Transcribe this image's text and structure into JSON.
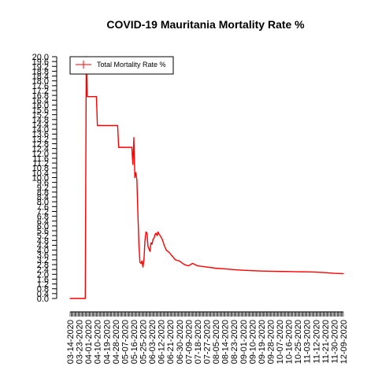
{
  "chart_data": {
    "type": "line",
    "title": "COVID-19 Mauritania Mortality Rate %",
    "xlabel": "",
    "ylabel": "",
    "ylim": [
      0,
      20
    ],
    "y_ticks": [
      "0.0",
      "0.4",
      "0.8",
      "1.2",
      "1.6",
      "2.0",
      "2.4",
      "2.8",
      "3.2",
      "3.6",
      "4.0",
      "4.4",
      "4.8",
      "5.2",
      "5.6",
      "6.0",
      "6.4",
      "6.8",
      "7.2",
      "7.6",
      "8.0",
      "8.4",
      "8.8",
      "9.2",
      "9.6",
      "10.0",
      "10.4",
      "10.8",
      "11.2",
      "11.6",
      "12.0",
      "12.4",
      "12.8",
      "13.2",
      "13.6",
      "14.0",
      "14.4",
      "14.8",
      "15.2",
      "15.6",
      "16.0",
      "16.4",
      "16.8",
      "17.2",
      "17.6",
      "18.0",
      "18.4",
      "18.8",
      "19.2",
      "19.6",
      "20.0"
    ],
    "x_ticks": [
      "03-14-2020",
      "03-23-2020",
      "04-01-2020",
      "04-10-2020",
      "04-19-2020",
      "04-28-2020",
      "05-07-2020",
      "05-16-2020",
      "05-25-2020",
      "06-03-2020",
      "06-12-2020",
      "06-21-2020",
      "06-30-2020",
      "07-09-2020",
      "07-18-2020",
      "07-27-2020",
      "08-05-2020",
      "08-14-2020",
      "08-23-2020",
      "09-01-2020",
      "09-10-2020",
      "09-19-2020",
      "09-28-2020",
      "10-07-2020",
      "10-16-2020",
      "10-25-2020",
      "11-03-2020",
      "11-12-2020",
      "11-21-2020",
      "11-30-2020",
      "12-09-2020"
    ],
    "x_range": [
      "03-14-2020",
      "12-09-2020"
    ],
    "legend_position": "top-left",
    "series": [
      {
        "name": "Total Mortality Rate %",
        "color": "#ff0000",
        "points": [
          [
            "03-14-2020",
            0.0
          ],
          [
            "03-29-2020",
            0.0
          ],
          [
            "03-30-2020",
            20.0
          ],
          [
            "03-31-2020",
            16.7
          ],
          [
            "04-09-2020",
            16.7
          ],
          [
            "04-10-2020",
            14.3
          ],
          [
            "04-30-2020",
            14.3
          ],
          [
            "05-01-2020",
            12.5
          ],
          [
            "05-14-2020",
            12.5
          ],
          [
            "05-15-2020",
            11.1
          ],
          [
            "05-16-2020",
            13.3
          ],
          [
            "05-17-2020",
            10.0
          ],
          [
            "05-18-2020",
            10.4
          ],
          [
            "05-19-2020",
            9.8
          ],
          [
            "05-20-2020",
            7.0
          ],
          [
            "05-21-2020",
            4.5
          ],
          [
            "05-22-2020",
            3.0
          ],
          [
            "05-23-2020",
            2.9
          ],
          [
            "05-24-2020",
            3.1
          ],
          [
            "05-25-2020",
            2.6
          ],
          [
            "05-26-2020",
            3.2
          ],
          [
            "05-27-2020",
            4.8
          ],
          [
            "05-28-2020",
            5.5
          ],
          [
            "05-29-2020",
            5.4
          ],
          [
            "05-30-2020",
            4.3
          ],
          [
            "05-31-2020",
            4.1
          ],
          [
            "06-01-2020",
            3.9
          ],
          [
            "06-02-2020",
            4.6
          ],
          [
            "06-03-2020",
            4.5
          ],
          [
            "06-04-2020",
            4.9
          ],
          [
            "06-05-2020",
            5.0
          ],
          [
            "06-06-2020",
            5.3
          ],
          [
            "06-07-2020",
            5.4
          ],
          [
            "06-08-2020",
            5.2
          ],
          [
            "06-09-2020",
            5.5
          ],
          [
            "06-10-2020",
            5.3
          ],
          [
            "06-11-2020",
            5.2
          ],
          [
            "06-13-2020",
            4.9
          ],
          [
            "06-15-2020",
            4.4
          ],
          [
            "06-17-2020",
            4.0
          ],
          [
            "06-20-2020",
            3.8
          ],
          [
            "06-23-2020",
            3.5
          ],
          [
            "06-26-2020",
            3.2
          ],
          [
            "06-30-2020",
            3.1
          ],
          [
            "07-05-2020",
            2.8
          ],
          [
            "07-09-2020",
            2.7
          ],
          [
            "07-13-2020",
            2.9
          ],
          [
            "07-18-2020",
            2.7
          ],
          [
            "07-27-2020",
            2.6
          ],
          [
            "08-05-2020",
            2.5
          ],
          [
            "08-14-2020",
            2.45
          ],
          [
            "08-23-2020",
            2.38
          ],
          [
            "09-01-2020",
            2.33
          ],
          [
            "09-10-2020",
            2.3
          ],
          [
            "09-19-2020",
            2.27
          ],
          [
            "09-28-2020",
            2.25
          ],
          [
            "10-07-2020",
            2.24
          ],
          [
            "10-16-2020",
            2.23
          ],
          [
            "10-25-2020",
            2.21
          ],
          [
            "11-03-2020",
            2.2
          ],
          [
            "11-12-2020",
            2.18
          ],
          [
            "11-21-2020",
            2.14
          ],
          [
            "11-30-2020",
            2.08
          ],
          [
            "12-09-2020",
            2.05
          ]
        ]
      }
    ]
  }
}
